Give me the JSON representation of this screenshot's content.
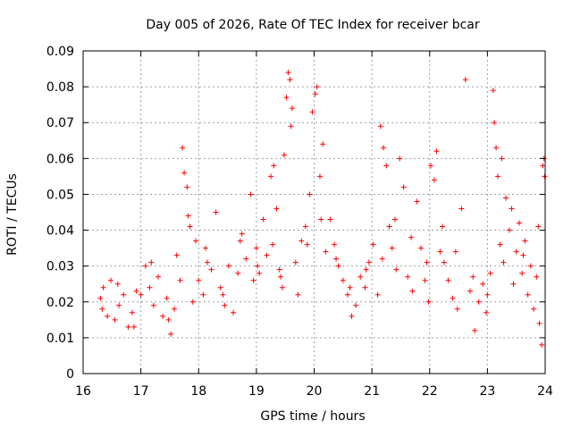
{
  "chart_data": {
    "type": "scatter",
    "title": "Day 005 of 2026, Rate Of TEC Index for receiver bcar",
    "xlabel": "GPS time / hours",
    "ylabel": "ROTI / TECUs",
    "xlim": [
      16,
      24
    ],
    "ylim": [
      0,
      0.09
    ],
    "xticks": [
      16,
      17,
      18,
      19,
      20,
      21,
      22,
      23,
      24
    ],
    "xtick_labels": [
      "16",
      "17",
      "18",
      "19",
      "20",
      "21",
      "22",
      "23",
      "24"
    ],
    "yticks": [
      0,
      0.01,
      0.02,
      0.03,
      0.04,
      0.05,
      0.06,
      0.07,
      0.08,
      0.09
    ],
    "ytick_labels": [
      "0",
      "0.01",
      "0.02",
      "0.03",
      "0.04",
      "0.05",
      "0.06",
      "0.07",
      "0.08",
      "0.09"
    ],
    "grid": true,
    "marker": "+",
    "color": "#ff0000",
    "series": [
      {
        "name": "ROTI",
        "points": [
          [
            16.3,
            0.021
          ],
          [
            16.35,
            0.024
          ],
          [
            16.42,
            0.016
          ],
          [
            16.48,
            0.026
          ],
          [
            16.55,
            0.015
          ],
          [
            16.62,
            0.019
          ],
          [
            16.7,
            0.022
          ],
          [
            16.78,
            0.013
          ],
          [
            16.85,
            0.017
          ],
          [
            16.92,
            0.023
          ],
          [
            17.0,
            0.022
          ],
          [
            17.08,
            0.03
          ],
          [
            17.15,
            0.024
          ],
          [
            17.22,
            0.019
          ],
          [
            17.3,
            0.027
          ],
          [
            17.38,
            0.016
          ],
          [
            17.45,
            0.021
          ],
          [
            17.52,
            0.011
          ],
          [
            17.58,
            0.018
          ],
          [
            17.62,
            0.033
          ],
          [
            17.68,
            0.026
          ],
          [
            17.72,
            0.063
          ],
          [
            17.75,
            0.056
          ],
          [
            17.8,
            0.052
          ],
          [
            17.85,
            0.041
          ],
          [
            17.9,
            0.02
          ],
          [
            17.95,
            0.037
          ],
          [
            18.0,
            0.026
          ],
          [
            18.08,
            0.022
          ],
          [
            18.15,
            0.031
          ],
          [
            18.22,
            0.029
          ],
          [
            18.3,
            0.045
          ],
          [
            18.38,
            0.024
          ],
          [
            18.45,
            0.019
          ],
          [
            18.52,
            0.03
          ],
          [
            18.6,
            0.017
          ],
          [
            18.68,
            0.028
          ],
          [
            18.75,
            0.039
          ],
          [
            18.82,
            0.032
          ],
          [
            18.9,
            0.05
          ],
          [
            18.95,
            0.026
          ],
          [
            19.0,
            0.035
          ],
          [
            19.05,
            0.028
          ],
          [
            19.12,
            0.043
          ],
          [
            19.18,
            0.033
          ],
          [
            19.25,
            0.055
          ],
          [
            19.3,
            0.058
          ],
          [
            19.35,
            0.046
          ],
          [
            19.4,
            0.029
          ],
          [
            19.45,
            0.024
          ],
          [
            19.48,
            0.061
          ],
          [
            19.52,
            0.077
          ],
          [
            19.55,
            0.084
          ],
          [
            19.58,
            0.082
          ],
          [
            19.62,
            0.074
          ],
          [
            19.68,
            0.031
          ],
          [
            19.72,
            0.022
          ],
          [
            19.78,
            0.037
          ],
          [
            19.85,
            0.041
          ],
          [
            19.92,
            0.05
          ],
          [
            19.97,
            0.073
          ],
          [
            20.02,
            0.078
          ],
          [
            20.05,
            0.08
          ],
          [
            20.1,
            0.055
          ],
          [
            20.15,
            0.064
          ],
          [
            20.2,
            0.034
          ],
          [
            20.28,
            0.043
          ],
          [
            20.35,
            0.036
          ],
          [
            20.42,
            0.03
          ],
          [
            20.5,
            0.026
          ],
          [
            20.58,
            0.022
          ],
          [
            20.65,
            0.016
          ],
          [
            20.72,
            0.019
          ],
          [
            20.8,
            0.027
          ],
          [
            20.88,
            0.024
          ],
          [
            20.95,
            0.031
          ],
          [
            21.02,
            0.036
          ],
          [
            21.1,
            0.022
          ],
          [
            21.15,
            0.069
          ],
          [
            21.2,
            0.063
          ],
          [
            21.25,
            0.058
          ],
          [
            21.3,
            0.041
          ],
          [
            21.35,
            0.035
          ],
          [
            21.42,
            0.029
          ],
          [
            21.48,
            0.06
          ],
          [
            21.55,
            0.052
          ],
          [
            21.62,
            0.027
          ],
          [
            21.7,
            0.023
          ],
          [
            21.78,
            0.048
          ],
          [
            21.85,
            0.035
          ],
          [
            21.92,
            0.026
          ],
          [
            21.98,
            0.02
          ],
          [
            22.02,
            0.058
          ],
          [
            22.08,
            0.054
          ],
          [
            22.12,
            0.062
          ],
          [
            22.18,
            0.034
          ],
          [
            22.25,
            0.031
          ],
          [
            22.32,
            0.026
          ],
          [
            22.4,
            0.021
          ],
          [
            22.48,
            0.018
          ],
          [
            22.55,
            0.046
          ],
          [
            22.62,
            0.082
          ],
          [
            22.7,
            0.023
          ],
          [
            22.78,
            0.012
          ],
          [
            22.85,
            0.02
          ],
          [
            22.92,
            0.025
          ],
          [
            22.98,
            0.017
          ],
          [
            23.05,
            0.028
          ],
          [
            23.1,
            0.079
          ],
          [
            23.12,
            0.07
          ],
          [
            23.15,
            0.063
          ],
          [
            23.18,
            0.055
          ],
          [
            23.22,
            0.036
          ],
          [
            23.28,
            0.031
          ],
          [
            23.32,
            0.049
          ],
          [
            23.38,
            0.04
          ],
          [
            23.45,
            0.025
          ],
          [
            23.5,
            0.034
          ],
          [
            23.55,
            0.042
          ],
          [
            23.6,
            0.028
          ],
          [
            23.65,
            0.037
          ],
          [
            23.7,
            0.022
          ],
          [
            23.75,
            0.03
          ],
          [
            23.8,
            0.018
          ],
          [
            23.85,
            0.027
          ],
          [
            23.9,
            0.014
          ],
          [
            23.94,
            0.008
          ],
          [
            23.96,
            0.058
          ],
          [
            23.98,
            0.06
          ],
          [
            23.99,
            0.055
          ],
          [
            16.33,
            0.018
          ],
          [
            16.6,
            0.025
          ],
          [
            16.88,
            0.013
          ],
          [
            17.18,
            0.031
          ],
          [
            17.48,
            0.015
          ],
          [
            17.82,
            0.044
          ],
          [
            18.12,
            0.035
          ],
          [
            18.42,
            0.022
          ],
          [
            18.72,
            0.037
          ],
          [
            19.02,
            0.03
          ],
          [
            19.28,
            0.036
          ],
          [
            19.42,
            0.027
          ],
          [
            19.6,
            0.069
          ],
          [
            19.88,
            0.036
          ],
          [
            20.12,
            0.043
          ],
          [
            20.38,
            0.032
          ],
          [
            20.62,
            0.024
          ],
          [
            20.9,
            0.029
          ],
          [
            21.18,
            0.032
          ],
          [
            21.4,
            0.043
          ],
          [
            21.68,
            0.038
          ],
          [
            21.95,
            0.031
          ],
          [
            22.22,
            0.041
          ],
          [
            22.45,
            0.034
          ],
          [
            22.75,
            0.027
          ],
          [
            23.0,
            0.022
          ],
          [
            23.25,
            0.06
          ],
          [
            23.42,
            0.046
          ],
          [
            23.62,
            0.033
          ],
          [
            23.88,
            0.041
          ]
        ]
      }
    ]
  }
}
